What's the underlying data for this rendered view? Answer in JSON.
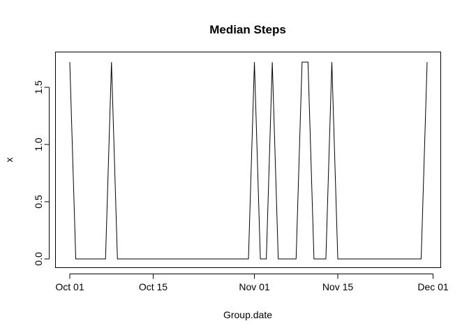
{
  "chart_data": {
    "type": "line",
    "title": "Median Steps",
    "xlabel": "Group.date",
    "ylabel": "x",
    "x_axis": {
      "type": "date",
      "range": [
        "2012-10-01",
        "2012-11-30"
      ],
      "ticks": [
        {
          "date": "2012-10-01",
          "label": "Oct 01"
        },
        {
          "date": "2012-10-15",
          "label": "Oct 15"
        },
        {
          "date": "2012-11-01",
          "label": "Nov 01"
        },
        {
          "date": "2012-11-15",
          "label": "Nov 15"
        },
        {
          "date": "2012-12-01",
          "label": "Dec 01"
        }
      ]
    },
    "y_axis": {
      "range": [
        0,
        1.72
      ],
      "ticks": [
        {
          "value": 0.0,
          "label": "0.0"
        },
        {
          "value": 0.5,
          "label": "0.5"
        },
        {
          "value": 1.0,
          "label": "1.0"
        },
        {
          "value": 1.5,
          "label": "1.5"
        }
      ]
    },
    "grid": false,
    "legend": "none",
    "series": [
      {
        "color": "#000000",
        "x": [
          "2012-10-01",
          "2012-10-02",
          "2012-10-03",
          "2012-10-04",
          "2012-10-05",
          "2012-10-06",
          "2012-10-07",
          "2012-10-08",
          "2012-10-09",
          "2012-10-10",
          "2012-10-11",
          "2012-10-12",
          "2012-10-13",
          "2012-10-14",
          "2012-10-15",
          "2012-10-16",
          "2012-10-17",
          "2012-10-18",
          "2012-10-19",
          "2012-10-20",
          "2012-10-21",
          "2012-10-22",
          "2012-10-23",
          "2012-10-24",
          "2012-10-25",
          "2012-10-26",
          "2012-10-27",
          "2012-10-28",
          "2012-10-29",
          "2012-10-30",
          "2012-10-31",
          "2012-11-01",
          "2012-11-02",
          "2012-11-03",
          "2012-11-04",
          "2012-11-05",
          "2012-11-06",
          "2012-11-07",
          "2012-11-08",
          "2012-11-09",
          "2012-11-10",
          "2012-11-11",
          "2012-11-12",
          "2012-11-13",
          "2012-11-14",
          "2012-11-15",
          "2012-11-16",
          "2012-11-17",
          "2012-11-18",
          "2012-11-19",
          "2012-11-20",
          "2012-11-21",
          "2012-11-22",
          "2012-11-23",
          "2012-11-24",
          "2012-11-25",
          "2012-11-26",
          "2012-11-27",
          "2012-11-28",
          "2012-11-29",
          "2012-11-30"
        ],
        "y": [
          1.72,
          0,
          0,
          0,
          0,
          0,
          0,
          1.72,
          0,
          0,
          0,
          0,
          0,
          0,
          0,
          0,
          0,
          0,
          0,
          0,
          0,
          0,
          0,
          0,
          0,
          0,
          0,
          0,
          0,
          0,
          0,
          1.72,
          0,
          0,
          1.72,
          0,
          0,
          0,
          0,
          1.72,
          1.72,
          0,
          0,
          0,
          1.72,
          0,
          0,
          0,
          0,
          0,
          0,
          0,
          0,
          0,
          0,
          0,
          0,
          0,
          0,
          0,
          1.72
        ]
      }
    ]
  }
}
